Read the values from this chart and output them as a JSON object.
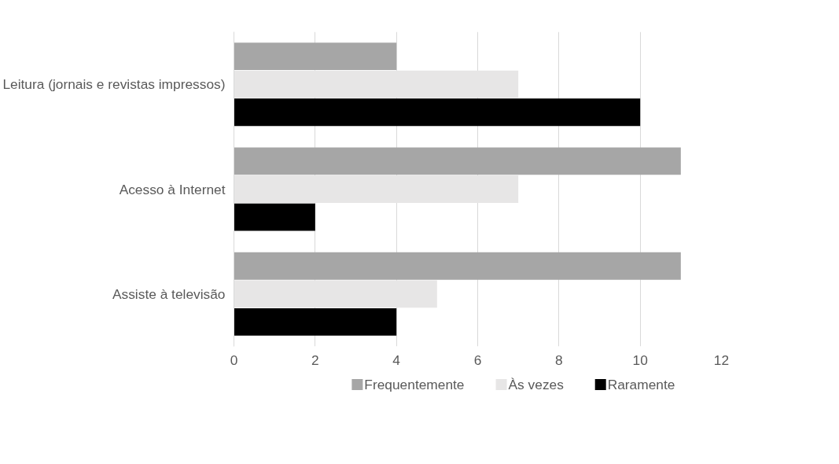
{
  "chart_data": {
    "type": "bar",
    "orientation": "horizontal",
    "categories": [
      "Leitura (jornais e revistas impressos)",
      "Acesso à Internet",
      "Assiste à televisão"
    ],
    "series": [
      {
        "name": "Frequentemente",
        "color": "#a6a6a6",
        "values": [
          4,
          11,
          11
        ]
      },
      {
        "name": "Às vezes",
        "color": "#e7e6e6",
        "values": [
          7,
          7,
          5
        ]
      },
      {
        "name": "Raramente",
        "color": "#000000",
        "values": [
          10,
          2,
          4
        ]
      }
    ],
    "xlim": [
      0,
      12
    ],
    "xticks": [
      0,
      2,
      4,
      6,
      8,
      10,
      12
    ],
    "grid": "x",
    "legend": "bottom"
  }
}
